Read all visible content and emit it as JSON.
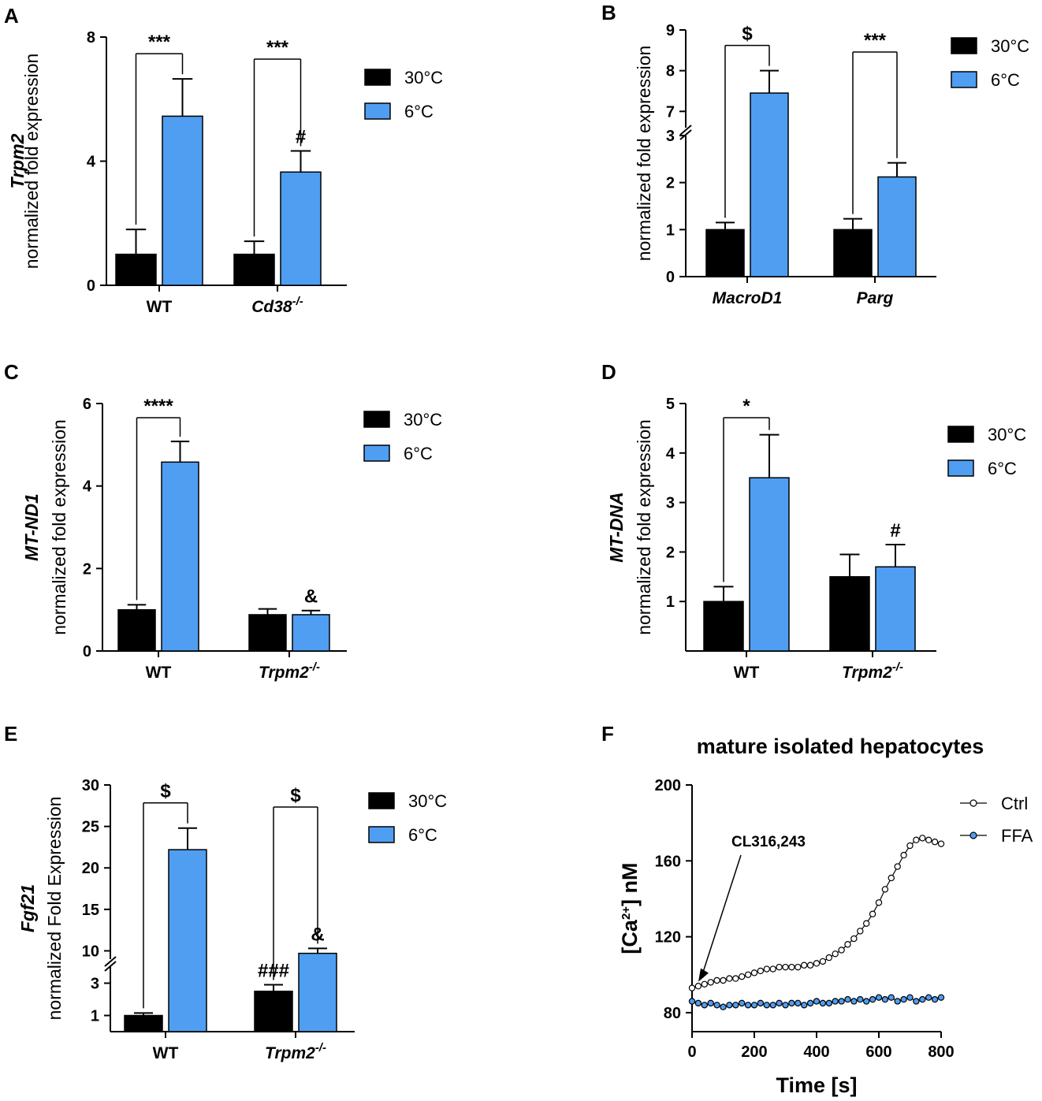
{
  "colors": {
    "c30": "#000000",
    "c6": "#4f9ef2",
    "ctrl_fill": "#ffffff",
    "ffa_fill": "#4f9ef2"
  },
  "chart_data": [
    {
      "id": "A",
      "panel_label": "A",
      "type": "bar",
      "ylabel_gene": "Trpm2",
      "ylabel": "normalized fold expression",
      "yticks": [
        "0",
        "4",
        "8"
      ],
      "ylim": [
        0,
        8
      ],
      "categories": [
        "WT",
        "Cd38"
      ],
      "category_sup": [
        "",
        "-/-"
      ],
      "series": [
        {
          "name": "30°C",
          "values": [
            1.0,
            1.0
          ],
          "err": [
            0.8,
            0.42
          ]
        },
        {
          "name": "6°C",
          "values": [
            5.45,
            3.65
          ],
          "err": [
            1.2,
            0.68
          ]
        }
      ],
      "sig_brackets": [
        "***",
        "***"
      ],
      "bar_marks": [
        {
          "cat": 1,
          "series": 1,
          "text": "#"
        }
      ]
    },
    {
      "id": "B",
      "panel_label": "B",
      "type": "bar",
      "broken_axis": true,
      "ylabel": "normalized fold expression",
      "yticks_lower": [
        "0",
        "1",
        "2",
        "3"
      ],
      "ylim_lower": [
        0,
        3
      ],
      "yticks_upper": [
        "7",
        "8",
        "9"
      ],
      "ylim_upper": [
        6.6,
        9
      ],
      "categories": [
        "MacroD1",
        "Parg"
      ],
      "series": [
        {
          "name": "30°C",
          "values": [
            1.0,
            1.0
          ],
          "err": [
            0.15,
            0.23
          ]
        },
        {
          "name": "6°C",
          "values": [
            7.45,
            2.12
          ],
          "err": [
            0.55,
            0.3
          ]
        }
      ],
      "sig_brackets": [
        "$",
        "***"
      ]
    },
    {
      "id": "C",
      "panel_label": "C",
      "type": "bar",
      "ylabel_gene": "MT-ND1",
      "ylabel": "normalized  fold expression",
      "yticks": [
        "0",
        "2",
        "4",
        "6"
      ],
      "ylim": [
        0,
        6
      ],
      "categories": [
        "WT",
        "Trpm2"
      ],
      "category_sup": [
        "",
        "-/-"
      ],
      "series": [
        {
          "name": "30°C",
          "values": [
            1.0,
            0.88
          ],
          "err": [
            0.12,
            0.14
          ]
        },
        {
          "name": "6°C",
          "values": [
            4.58,
            0.88
          ],
          "err": [
            0.5,
            0.1
          ]
        }
      ],
      "sig_brackets": [
        "****",
        null
      ],
      "bar_marks": [
        {
          "cat": 1,
          "series": 1,
          "text": "&"
        }
      ]
    },
    {
      "id": "D",
      "panel_label": "D",
      "type": "bar",
      "ylabel_gene": "MT-DNA",
      "ylabel": "normalized  fold expression",
      "yticks": [
        "1",
        "2",
        "3",
        "4",
        "5"
      ],
      "ylim": [
        0,
        5
      ],
      "categories": [
        "WT",
        "Trpm2"
      ],
      "category_sup": [
        "",
        "-/-"
      ],
      "series": [
        {
          "name": "30°C",
          "values": [
            1.0,
            1.5
          ],
          "err": [
            0.3,
            0.45
          ]
        },
        {
          "name": "6°C",
          "values": [
            3.5,
            1.7
          ],
          "err": [
            0.87,
            0.45
          ]
        }
      ],
      "sig_brackets": [
        "*",
        null
      ],
      "bar_marks": [
        {
          "cat": 1,
          "series": 1,
          "text": "#"
        }
      ]
    },
    {
      "id": "E",
      "panel_label": "E",
      "type": "bar",
      "broken_axis": true,
      "ylabel_gene": "Fgf21",
      "ylabel": "normalized Fold Expression",
      "yticks_lower": [
        "1",
        "3"
      ],
      "ylim_lower": [
        0,
        4
      ],
      "yticks_upper": [
        "10",
        "15",
        "20",
        "25",
        "30"
      ],
      "ylim_upper": [
        9,
        30
      ],
      "categories": [
        "WT",
        "Trpm2"
      ],
      "category_sup": [
        "",
        "-/-"
      ],
      "series": [
        {
          "name": "30°C",
          "values": [
            1.0,
            2.5
          ],
          "err": [
            0.15,
            0.4
          ]
        },
        {
          "name": "6°C",
          "values": [
            22.2,
            9.7
          ],
          "err": [
            2.6,
            0.6
          ]
        }
      ],
      "sig_brackets": [
        "$",
        "$"
      ],
      "bar_marks": [
        {
          "cat": 1,
          "series": 0,
          "text": "###"
        },
        {
          "cat": 1,
          "series": 1,
          "text": "&"
        }
      ]
    },
    {
      "id": "F",
      "panel_label": "F",
      "type": "line",
      "title": "mature isolated hepatocytes",
      "xlabel": "Time [s]",
      "ylabel_pre": "[Ca",
      "ylabel_sup": "2+",
      "ylabel_post": "] nM",
      "xticks": [
        "0",
        "200",
        "400",
        "600",
        "800"
      ],
      "xlim": [
        0,
        800
      ],
      "yticks": [
        "80",
        "120",
        "160",
        "200"
      ],
      "ylim": [
        70,
        200
      ],
      "annotation": "CL316,243",
      "annotation_at": [
        0,
        93
      ],
      "x": [
        0,
        20,
        40,
        60,
        80,
        100,
        120,
        140,
        160,
        180,
        200,
        220,
        240,
        260,
        280,
        300,
        320,
        340,
        360,
        380,
        400,
        420,
        440,
        460,
        480,
        500,
        520,
        540,
        560,
        580,
        600,
        620,
        640,
        660,
        680,
        700,
        720,
        740,
        760,
        780,
        800
      ],
      "series": [
        {
          "name": "Ctrl",
          "values": [
            93,
            94,
            95,
            96,
            97,
            97,
            98,
            98,
            99,
            100,
            101,
            102,
            103,
            103,
            104,
            104,
            104,
            104,
            105,
            105,
            106,
            107,
            109,
            111,
            113,
            116,
            119,
            123,
            127,
            132,
            138,
            145,
            151,
            157,
            163,
            168,
            171,
            172,
            171,
            170,
            169
          ]
        },
        {
          "name": "FFA",
          "values": [
            86,
            85,
            84,
            85,
            84,
            83,
            84,
            84,
            85,
            84,
            84,
            85,
            84,
            84,
            85,
            84,
            85,
            85,
            84,
            85,
            86,
            85,
            85,
            86,
            86,
            87,
            86,
            87,
            86,
            87,
            88,
            87,
            88,
            86,
            87,
            88,
            86,
            87,
            88,
            87,
            88
          ]
        }
      ]
    }
  ]
}
